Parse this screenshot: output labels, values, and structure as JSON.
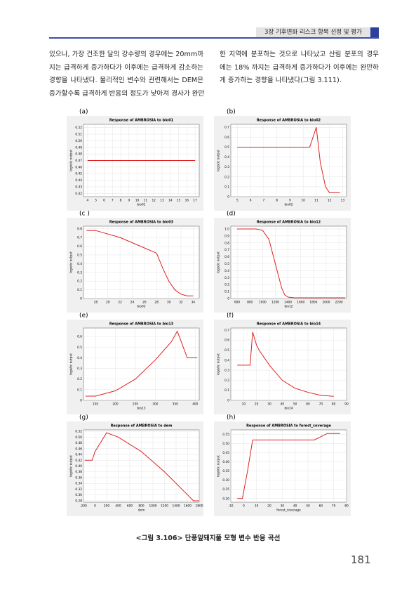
{
  "header": "3장 기후변화 리스크 항목 선정 및 평가",
  "left_column": [
    "있으나, 가장 건조한 달의 강수량의 경우에는 20mm까",
    "지는 급격하게 증가하다가 이후에는 급격하게 감소하는",
    "경향을 나타냈다. 물리적인 변수와 관련해서는 DEM은",
    "증가할수록 급격하게 반응의 정도가 낮아져 경사가 완만"
  ],
  "right_column": [
    "한 지역에 분포하는 것으로 나타났고 산림 분포의 경우",
    "에는 18% 까지는 급격하게 증가하다가 이후에는 완만하",
    "게 증가하는 경향을 나타냈다(그림 3.111)."
  ],
  "panel_labels": [
    "(a)",
    "(b)",
    "(c )",
    "(d)",
    "(e)",
    "(f)",
    "(g)",
    "(h)"
  ],
  "chart_data": [
    {
      "type": "line",
      "title": "Response of AMBROSIA to bio01",
      "xlabel": "bio01",
      "ylabel": "logistic output",
      "color": "#e02020",
      "grid": true,
      "x": [
        4,
        17
      ],
      "values": [
        0.47,
        0.47
      ],
      "xlim": [
        3.5,
        17.5
      ],
      "ylim": [
        0.415,
        0.525
      ],
      "xticks": [
        4,
        5,
        6,
        7,
        8,
        9,
        10,
        11,
        12,
        13,
        14,
        15,
        16,
        17
      ],
      "yticks": [
        0.42,
        0.43,
        0.44,
        0.45,
        0.46,
        0.47,
        0.48,
        0.49,
        {
          "value": 0.5,
          "label": "0.50"
        },
        0.51,
        0.52
      ]
    },
    {
      "type": "line",
      "title": "Response of AMBROSIA to bio02",
      "xlabel": "bio02",
      "ylabel": "logistic output",
      "color": "#e02020",
      "grid": true,
      "x": [
        5,
        10.5,
        11,
        11.3,
        11.7,
        12,
        12.8
      ],
      "values": [
        0.5,
        0.5,
        0.7,
        0.35,
        0.1,
        0.04,
        0.04
      ],
      "xlim": [
        4.5,
        13.3
      ],
      "ylim": [
        0,
        0.73
      ],
      "xticks": [
        5,
        6,
        7,
        8,
        9,
        10,
        11,
        12,
        13
      ],
      "yticks": [
        0,
        0.1,
        0.2,
        0.3,
        0.4,
        0.5,
        0.6,
        0.7
      ]
    },
    {
      "type": "line",
      "title": "Response of AMBROSIA to bio03",
      "xlabel": "bio03",
      "ylabel": "logistic output",
      "color": "#e02020",
      "grid": true,
      "x": [
        16.5,
        18,
        22,
        26,
        28,
        29,
        30,
        31,
        32,
        33,
        34
      ],
      "values": [
        0.78,
        0.78,
        0.7,
        0.58,
        0.52,
        0.35,
        0.2,
        0.1,
        0.05,
        0.03,
        0.03
      ],
      "xlim": [
        16,
        35
      ],
      "ylim": [
        0,
        0.83
      ],
      "xticks": [
        18,
        20,
        22,
        24,
        26,
        28,
        30,
        32,
        34
      ],
      "yticks": [
        0,
        0.1,
        0.2,
        0.3,
        0.4,
        0.5,
        0.6,
        0.7,
        0.8
      ]
    },
    {
      "type": "line",
      "title": "Response of AMBROSIA to bio12",
      "xlabel": "bio12",
      "ylabel": "logistic output",
      "color": "#e02020",
      "grid": true,
      "x": [
        600,
        900,
        1000,
        1100,
        1200,
        1300,
        1350,
        1400,
        1500,
        2300
      ],
      "values": [
        1.0,
        1.0,
        0.98,
        0.85,
        0.5,
        0.15,
        0.05,
        0.02,
        0.01,
        0.01
      ],
      "xlim": [
        500,
        2320
      ],
      "ylim": [
        0,
        1.04
      ],
      "xticks": [
        600,
        800,
        1000,
        1200,
        1400,
        1600,
        1800,
        2000,
        2200
      ],
      "yticks": [
        0,
        0.1,
        0.2,
        0.3,
        0.4,
        0.5,
        0.6,
        0.7,
        0.8,
        0.9,
        {
          "value": 1,
          "label": "1.0"
        }
      ]
    },
    {
      "type": "line",
      "title": "Response of AMBROSIA to bio13",
      "xlabel": "bio13",
      "ylabel": "logistic output",
      "color": "#e02020",
      "grid": true,
      "x": [
        125,
        150,
        200,
        250,
        300,
        340,
        355,
        380,
        405
      ],
      "values": [
        0.04,
        0.04,
        0.09,
        0.2,
        0.38,
        0.55,
        0.65,
        0.4,
        0.4
      ],
      "xlim": [
        120,
        410
      ],
      "ylim": [
        0,
        0.68
      ],
      "xticks": [
        150,
        200,
        250,
        300,
        350,
        400
      ],
      "yticks": [
        0,
        0.1,
        0.2,
        0.3,
        0.4,
        0.5,
        0.6
      ]
    },
    {
      "type": "line",
      "title": "Response of AMBROSIA to bio14",
      "xlabel": "bio14",
      "ylabel": "logistic output",
      "color": "#e02020",
      "grid": true,
      "x": [
        5,
        15,
        17,
        20,
        22,
        30,
        40,
        50,
        60,
        70,
        80
      ],
      "values": [
        0.35,
        0.35,
        0.68,
        0.55,
        0.5,
        0.35,
        0.2,
        0.12,
        0.08,
        0.05,
        0.04
      ],
      "xlim": [
        0,
        90
      ],
      "ylim": [
        0,
        0.72
      ],
      "xticks": [
        10,
        20,
        30,
        40,
        50,
        60,
        70,
        80,
        90
      ],
      "yticks": [
        0,
        0.1,
        0.2,
        0.3,
        0.4,
        0.5,
        0.6,
        0.7
      ]
    },
    {
      "type": "line",
      "title": "Response of AMBROSIA to dem",
      "xlabel": "dem",
      "ylabel": "logistic output",
      "color": "#e02020",
      "grid": true,
      "x": [
        -180,
        -50,
        0,
        200,
        400,
        800,
        1200,
        1600,
        1700,
        1800
      ],
      "values": [
        0.42,
        0.42,
        0.45,
        0.515,
        0.5,
        0.45,
        0.38,
        0.3,
        0.28,
        0.28
      ],
      "xlim": [
        -200,
        1800
      ],
      "ylim": [
        0.275,
        0.525
      ],
      "xticks": [
        -200,
        0,
        200,
        400,
        600,
        800,
        1000,
        1200,
        1400,
        1600,
        1800
      ],
      "yticks": [
        0.28,
        {
          "value": 0.3,
          "label": "0.30"
        },
        0.32,
        0.34,
        0.36,
        0.38,
        {
          "value": 0.4,
          "label": "0.40"
        },
        0.42,
        0.44,
        0.46,
        0.48,
        {
          "value": 0.5,
          "label": "0.50"
        },
        0.52
      ]
    },
    {
      "type": "line",
      "title": "Response of AMBROSIA to forest_coverage",
      "xlabel": "forest_coverage",
      "ylabel": "logistic output",
      "color": "#e02020",
      "grid": true,
      "x": [
        -5,
        -1,
        3,
        7,
        18,
        55,
        65,
        75
      ],
      "values": [
        0.2,
        0.2,
        0.35,
        0.52,
        0.52,
        0.52,
        0.555,
        0.555
      ],
      "xlim": [
        -10,
        80
      ],
      "ylim": [
        0.18,
        0.575
      ],
      "xticks": [
        -10,
        0,
        10,
        20,
        30,
        40,
        50,
        60,
        70,
        80
      ],
      "yticks": [
        {
          "value": 0.2,
          "label": "0.20"
        },
        0.25,
        {
          "value": 0.3,
          "label": "0.30"
        },
        0.35,
        {
          "value": 0.4,
          "label": "0.40"
        },
        0.45,
        {
          "value": 0.5,
          "label": "0.50"
        },
        0.55
      ]
    }
  ],
  "caption": "<그림 3.106> 단풍잎돼지풀 모형 변수 반응 곡선",
  "page_number": "181"
}
